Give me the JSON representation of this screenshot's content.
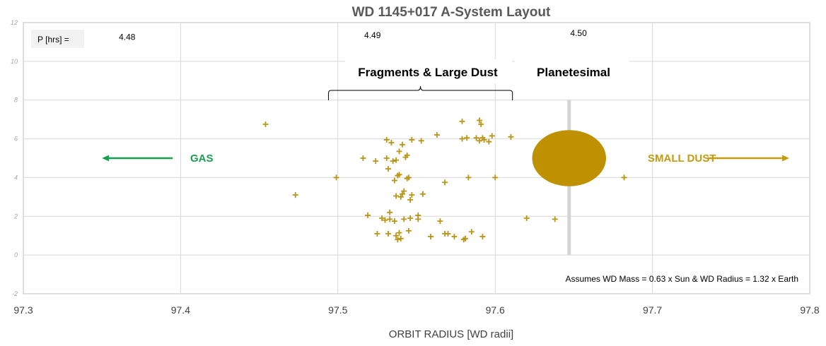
{
  "chart_data": {
    "type": "scatter",
    "title": "WD 1145+017 A-System Layout",
    "xlabel": "ORBIT RADIUS [WD radii]",
    "ylabel": "",
    "xlim": [
      97.3,
      97.8
    ],
    "ylim": [
      -2,
      12
    ],
    "x_ticks": [
      97.3,
      97.4,
      97.5,
      97.6,
      97.7,
      97.8
    ],
    "y_ticks": [
      -2,
      0,
      2,
      4,
      6,
      8,
      10,
      12
    ],
    "grid": true,
    "period_label": "P [hrs] =",
    "period_labels": [
      {
        "x": 97.366,
        "y": 11.1,
        "text": "4.48"
      },
      {
        "x": 97.522,
        "y": 11.2,
        "text": "4.49"
      },
      {
        "x": 97.653,
        "y": 11.3,
        "text": "4.50"
      }
    ],
    "annotations": {
      "fragments": "Fragments & Large Dust",
      "planetesimal": "Planetesimal",
      "gas": "GAS",
      "small_dust": "SMALL DUST",
      "assumption": "Assumes WD Mass = 0.63 x Sun & WD Radius  = 1.32 x Earth"
    },
    "brace": {
      "x_start": 97.494,
      "x_end": 97.611,
      "y": 8.5
    },
    "planetesimal_body": {
      "cx": 97.647,
      "cy": 5.0,
      "rx": 0.0235,
      "ry": 1.45
    },
    "planetesimal_bar": {
      "x": 97.647,
      "y_start": 0.0,
      "y_end": 8.0
    },
    "gas_arrow": {
      "x_from": 97.395,
      "x_to": 97.35,
      "y": 5.0
    },
    "dust_arrow": {
      "x_from": 97.735,
      "x_to": 97.787,
      "y": 5.0
    },
    "colors": {
      "points": "#b8961a",
      "planetesimal": "#bf9000",
      "gas": "#1a9e52",
      "small_dust": "#c49a12",
      "bar": "#d4d4d4",
      "grid": "#d9d9d9",
      "title": "#595959"
    },
    "points": [
      [
        97.454,
        6.75
      ],
      [
        97.473,
        3.1
      ],
      [
        97.499,
        4.0
      ],
      [
        97.516,
        5.0
      ],
      [
        97.519,
        2.05
      ],
      [
        97.524,
        4.85
      ],
      [
        97.525,
        1.1
      ],
      [
        97.528,
        1.9
      ],
      [
        97.53,
        1.8
      ],
      [
        97.531,
        5.95
      ],
      [
        97.531,
        5.0
      ],
      [
        97.533,
        1.85
      ],
      [
        97.532,
        4.45
      ],
      [
        97.532,
        1.1
      ],
      [
        97.533,
        2.2
      ],
      [
        97.534,
        5.8
      ],
      [
        97.535,
        4.85
      ],
      [
        97.536,
        3.85
      ],
      [
        97.536,
        1.75
      ],
      [
        97.537,
        3.05
      ],
      [
        97.537,
        4.9
      ],
      [
        97.537,
        1.0
      ],
      [
        97.538,
        4.1
      ],
      [
        97.538,
        0.8
      ],
      [
        97.539,
        5.35
      ],
      [
        97.539,
        1.15
      ],
      [
        97.539,
        4.15
      ],
      [
        97.54,
        0.85
      ],
      [
        97.54,
        3.0
      ],
      [
        97.541,
        3.15
      ],
      [
        97.541,
        5.7
      ],
      [
        97.542,
        1.85
      ],
      [
        97.542,
        3.3
      ],
      [
        97.543,
        5.05
      ],
      [
        97.544,
        5.15
      ],
      [
        97.544,
        3.95
      ],
      [
        97.545,
        1.25
      ],
      [
        97.545,
        4.0
      ],
      [
        97.546,
        2.85
      ],
      [
        97.546,
        1.9
      ],
      [
        97.547,
        3.1
      ],
      [
        97.547,
        5.95
      ],
      [
        97.551,
        2.05
      ],
      [
        97.551,
        1.85
      ],
      [
        97.553,
        5.9
      ],
      [
        97.554,
        3.15
      ],
      [
        97.559,
        0.95
      ],
      [
        97.563,
        6.2
      ],
      [
        97.565,
        1.75
      ],
      [
        97.568,
        3.75
      ],
      [
        97.568,
        1.1
      ],
      [
        97.57,
        1.1
      ],
      [
        97.574,
        0.95
      ],
      [
        97.579,
        6.9
      ],
      [
        97.579,
        6.0
      ],
      [
        97.58,
        0.8
      ],
      [
        97.581,
        0.85
      ],
      [
        97.582,
        6.05
      ],
      [
        97.583,
        4.0
      ],
      [
        97.585,
        1.2
      ],
      [
        97.588,
        6.05
      ],
      [
        97.59,
        5.9
      ],
      [
        97.59,
        6.95
      ],
      [
        97.591,
        6.75
      ],
      [
        97.592,
        6.05
      ],
      [
        97.592,
        0.95
      ],
      [
        97.593,
        5.95
      ],
      [
        97.596,
        5.85
      ],
      [
        97.598,
        6.15
      ],
      [
        97.6,
        4.0
      ],
      [
        97.61,
        6.1
      ],
      [
        97.62,
        1.9
      ],
      [
        97.638,
        1.85
      ],
      [
        97.682,
        4.0
      ]
    ]
  }
}
